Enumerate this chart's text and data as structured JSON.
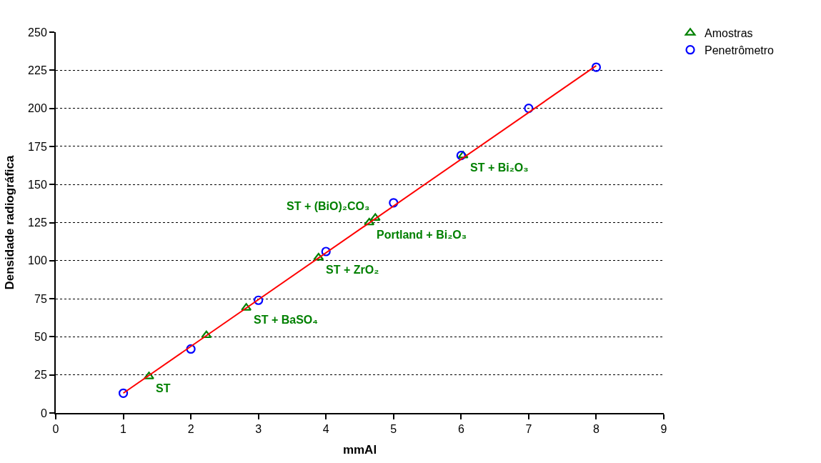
{
  "chart_data": {
    "type": "scatter",
    "xlabel": "mmAl",
    "ylabel": "Densidade radiográfica",
    "xlim": [
      0,
      9
    ],
    "xticks": [
      0,
      1,
      2,
      3,
      4,
      5,
      6,
      7,
      8,
      9
    ],
    "ylim": [
      0,
      250
    ],
    "yticks": [
      0,
      25,
      50,
      75,
      100,
      125,
      150,
      175,
      200,
      225,
      250
    ],
    "grid": "y",
    "legend": "top right",
    "series": [
      {
        "name": "Amostras",
        "marker": "triangle",
        "color": "#008000",
        "x": [
          1.38,
          2.23,
          2.82,
          3.89,
          4.64,
          4.73,
          6.03
        ],
        "values": [
          24,
          51,
          69,
          102,
          125,
          128,
          169
        ]
      },
      {
        "name": "Penetrômetro",
        "marker": "circle",
        "color": "#0000ff",
        "x": [
          1,
          2,
          3,
          4,
          5,
          6,
          7,
          8
        ],
        "values": [
          13,
          42,
          74,
          106,
          138,
          169,
          200,
          227
        ]
      },
      {
        "type": "line",
        "color": "#ff0000",
        "marker": "none",
        "line_style": "solid",
        "x": [
          1,
          8
        ],
        "values": [
          13,
          228
        ]
      }
    ],
    "annotations": [
      {
        "text": "ST",
        "x": 1.38,
        "y": 24
      },
      {
        "text": "ST + BaSO₄",
        "x": 2.82,
        "y": 69
      },
      {
        "text": "ST + ZrO₂",
        "x": 3.89,
        "y": 102
      },
      {
        "text": "Portland + Bi₂O₃",
        "x": 4.64,
        "y": 125
      },
      {
        "text": "ST + (BiO)₂CO₃",
        "x": 4.73,
        "y": 128
      },
      {
        "text": "ST + Bi₂O₃",
        "x": 6.03,
        "y": 169
      }
    ]
  }
}
